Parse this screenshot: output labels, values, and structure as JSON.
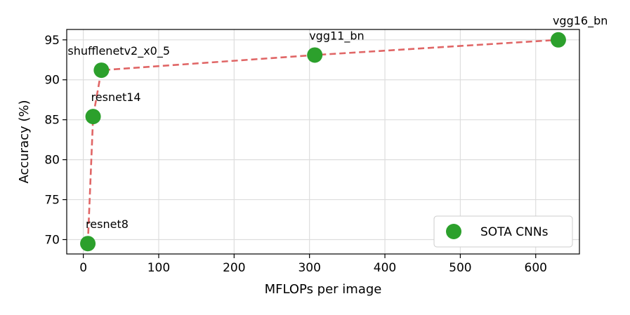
{
  "chart_data": {
    "type": "scatter",
    "title": "",
    "xlabel": "MFLOPs per image",
    "ylabel": "Accuracy (%)",
    "xlim": [
      -22,
      658
    ],
    "ylim": [
      68.2,
      96.3
    ],
    "xticks": [
      0,
      100,
      200,
      300,
      400,
      500,
      600
    ],
    "yticks": [
      70,
      75,
      80,
      85,
      90,
      95
    ],
    "grid": true,
    "legend": {
      "position": "bottom-right",
      "entries": [
        "SOTA CNNs"
      ]
    },
    "series": [
      {
        "name": "SOTA CNNs",
        "marker_color": "#2ca02c",
        "points": [
          {
            "label": "resnet8",
            "x": 6,
            "y": 69.5
          },
          {
            "label": "resnet14",
            "x": 13,
            "y": 85.4
          },
          {
            "label": "shufflenetv2_x0_5",
            "x": 24,
            "y": 91.2
          },
          {
            "label": "vgg11_bn",
            "x": 307,
            "y": 93.1
          },
          {
            "label": "vgg16_bn",
            "x": 630,
            "y": 95.0
          }
        ]
      }
    ],
    "frontier": {
      "style": "dashed",
      "color": "#e06666",
      "order": [
        "resnet8",
        "resnet14",
        "shufflenetv2_x0_5",
        "vgg11_bn",
        "vgg16_bn"
      ]
    }
  }
}
